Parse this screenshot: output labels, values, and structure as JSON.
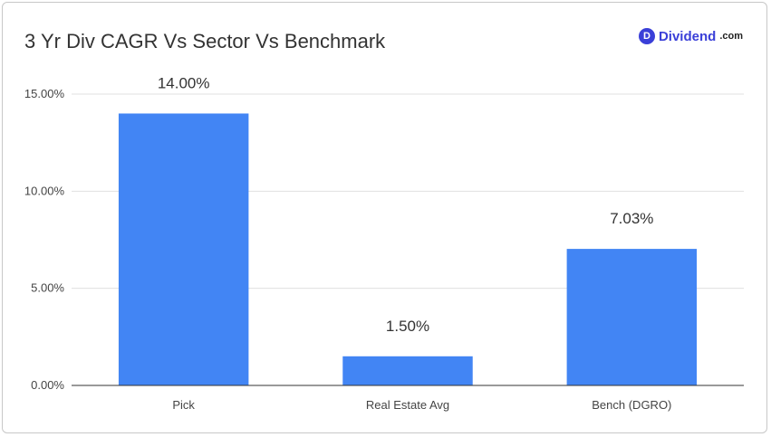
{
  "header": {
    "title": "3 Yr Div CAGR Vs Sector Vs Benchmark"
  },
  "logo": {
    "badge": "D",
    "name": "Dividend",
    "tld": ".com",
    "color": "#3a3fd8"
  },
  "colors": {
    "bar": "#4285f4",
    "grid": "#e0e0e0",
    "axis": "#333333"
  },
  "chart_data": {
    "type": "bar",
    "title": "3 Yr Div CAGR Vs Sector Vs Benchmark",
    "categories": [
      "Pick",
      "Real Estate Avg",
      "Bench (DGRO)"
    ],
    "values": [
      14.0,
      1.5,
      7.03
    ],
    "data_labels": [
      "14.00%",
      "1.50%",
      "7.03%"
    ],
    "ylim": [
      0,
      15
    ],
    "yticks": [
      0,
      5,
      10,
      15
    ],
    "ytick_labels": [
      "0.00%",
      "5.00%",
      "10.00%",
      "15.00%"
    ],
    "grid": true,
    "legend": "none"
  }
}
